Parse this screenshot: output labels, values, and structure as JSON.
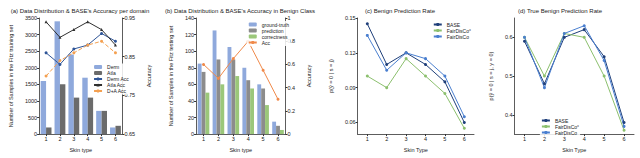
{
  "chart_data": [
    {
      "type": "bar",
      "title": "(a) Data Distribution & BASE's Accuracy per domain",
      "x_label": "Skin type",
      "y_label": "Number of Samples in the Fitz training set",
      "y2_label": "Accuracy",
      "categories": [
        "1",
        "2",
        "3",
        "4",
        "5",
        "6"
      ],
      "series": [
        {
          "name": "Derm",
          "type": "bar",
          "color": "#8fa9dc",
          "values": [
            1600,
            3400,
            2400,
            1700,
            700,
            200
          ]
        },
        {
          "name": "Atla",
          "type": "bar",
          "color": "#6b6b6b",
          "values": [
            200,
            1500,
            1100,
            1100,
            700,
            250
          ]
        },
        {
          "name": "Derm Acc",
          "type": "line",
          "axis": "y2",
          "color": "#2f5597",
          "marker": "circle",
          "line_style": "solid",
          "values": [
            0.86,
            0.83,
            0.87,
            0.88,
            0.91,
            0.89
          ]
        },
        {
          "name": "Atla Acc",
          "type": "line",
          "axis": "y2",
          "color": "#303030",
          "marker": "triangle",
          "line_style": "solid",
          "values": [
            0.94,
            0.9,
            0.92,
            0.94,
            0.92,
            0.88
          ]
        },
        {
          "name": "D+A Acc",
          "type": "line",
          "axis": "y2",
          "color": "#f4a050",
          "marker": "circle",
          "line_style": "dashed",
          "values": [
            0.8,
            0.84,
            0.86,
            0.88,
            0.89,
            0.86
          ]
        }
      ],
      "ylim": [
        0,
        3500
      ],
      "yticks": [
        0,
        500,
        1000,
        1500,
        2000,
        2500,
        3000,
        3500
      ],
      "y2lim": [
        0.65,
        0.95
      ],
      "y2ticks": [
        0.65,
        0.75,
        0.85,
        0.95
      ],
      "legend": "center right",
      "grid": false
    },
    {
      "type": "bar",
      "title": "(b) Data Distribution & BASE's Accuracy in Benign Class",
      "x_label": "Skin type",
      "y_label": "Number of Samples in the Fitz testing set",
      "y2_label": "Accuracy",
      "categories": [
        "1",
        "2",
        "3",
        "4",
        "5",
        "6"
      ],
      "series": [
        {
          "name": "ground-truth",
          "type": "bar",
          "color": "#8fa9dc",
          "values": [
            85,
            125,
            105,
            80,
            60,
            15
          ]
        },
        {
          "name": "prediction",
          "type": "bar",
          "color": "#8c8c8c",
          "values": [
            75,
            90,
            90,
            65,
            55,
            10
          ]
        },
        {
          "name": "correctness",
          "type": "bar",
          "color": "#9bc77a",
          "values": [
            50,
            60,
            70,
            55,
            35,
            5
          ]
        },
        {
          "name": "Acc",
          "type": "line",
          "axis": "y2",
          "color": "#f08a4b",
          "marker": "circle",
          "line_style": "solid",
          "values": [
            0.6,
            0.48,
            0.65,
            0.8,
            0.55,
            0.3
          ]
        }
      ],
      "ylim": [
        0,
        140
      ],
      "yticks": [
        0,
        20,
        40,
        60,
        80,
        100,
        120,
        140
      ],
      "y2lim": [
        0,
        1
      ],
      "y2ticks": [
        0,
        0.2,
        0.4,
        0.6,
        0.8,
        1
      ],
      "legend": "upper right",
      "grid": false
    },
    {
      "type": "line",
      "title": "(c) Benign Prediction Rate",
      "x_label": "Skin Type",
      "y_label": "p(ŷ = 0 | s = j)",
      "categories": [
        "1",
        "2",
        "3",
        "4",
        "5",
        "6"
      ],
      "series": [
        {
          "name": "BASE",
          "color": "#1f3f7a",
          "marker": "circle",
          "line_style": "solid",
          "values": [
            0.145,
            0.11,
            0.12,
            0.11,
            0.095,
            0.06
          ]
        },
        {
          "name": "FairDisCo°",
          "color": "#8cc06e",
          "marker": "circle",
          "line_style": "solid",
          "values": [
            0.1,
            0.09,
            0.115,
            0.1,
            0.085,
            0.055
          ]
        },
        {
          "name": "FairDisCo",
          "color": "#4a7fd0",
          "marker": "circle",
          "line_style": "solid",
          "values": [
            0.135,
            0.105,
            0.12,
            0.115,
            0.1,
            0.065
          ]
        }
      ],
      "ylim": [
        0.05,
        0.15
      ],
      "yticks": [
        0.06,
        0.09,
        0.12,
        0.15
      ],
      "legend": "upper right",
      "grid": false
    },
    {
      "type": "line",
      "title": "(d) True Benign Prediction Rate",
      "x_label": "Skin Type",
      "y_label": "p(ŷ = 0 | s = j, y = 0)",
      "categories": [
        "1",
        "2",
        "3",
        "4",
        "5",
        "6"
      ],
      "series": [
        {
          "name": "BASE",
          "color": "#1f3f7a",
          "marker": "circle",
          "line_style": "solid",
          "values": [
            0.59,
            0.48,
            0.6,
            0.62,
            0.55,
            0.38
          ]
        },
        {
          "name": "FairDisCo°",
          "color": "#8cc06e",
          "marker": "circle",
          "line_style": "solid",
          "values": [
            0.6,
            0.5,
            0.61,
            0.6,
            0.5,
            0.36
          ]
        },
        {
          "name": "FairDisCo",
          "color": "#4a7fd0",
          "marker": "circle",
          "line_style": "solid",
          "values": [
            0.6,
            0.47,
            0.61,
            0.63,
            0.54,
            0.37
          ]
        }
      ],
      "ylim": [
        0.35,
        0.65
      ],
      "yticks": [
        0.4,
        0.5,
        0.6
      ],
      "legend": "lower center",
      "grid": false
    }
  ]
}
